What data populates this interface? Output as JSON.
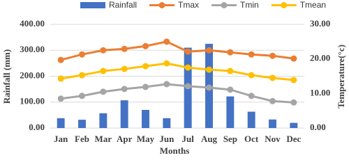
{
  "chart_data": {
    "type": "bar-line",
    "x_label": "Months",
    "y_label": "Rainfall (mm)",
    "y2_label": "Temperature(°c)",
    "categories": [
      "Jan",
      "Feb",
      "Mar",
      "Apr",
      "May",
      "Jun",
      "Jul",
      "Aug",
      "Sep",
      "Oct",
      "Nov",
      "Dec"
    ],
    "series": [
      {
        "name": "Rainfall",
        "type": "bar",
        "color": "#4472c4",
        "values": [
          38,
          32,
          57,
          107,
          70,
          38,
          310,
          325,
          122,
          63,
          33,
          20
        ]
      },
      {
        "name": "Tmax",
        "type": "line",
        "axis": "y2",
        "color": "#ed7d31",
        "values": [
          19.7,
          21.3,
          22.5,
          22.9,
          23.7,
          25.0,
          22.1,
          22.5,
          21.9,
          21.3,
          20.9,
          20.1
        ]
      },
      {
        "name": "Tmin",
        "type": "line",
        "axis": "y2",
        "color": "#a5a5a5",
        "values": [
          8.5,
          9.3,
          10.5,
          11.3,
          11.9,
          12.7,
          12.1,
          11.7,
          11.1,
          9.3,
          7.8,
          7.4
        ]
      },
      {
        "name": "Tmean",
        "type": "line",
        "axis": "y2",
        "color": "#ffc000",
        "values": [
          14.3,
          15.3,
          16.5,
          17.1,
          17.9,
          18.7,
          17.5,
          16.9,
          16.5,
          15.3,
          14.5,
          13.9
        ]
      }
    ],
    "ylim": [
      0,
      400
    ],
    "yticks": [
      {
        "value": 0,
        "label": "0.00"
      },
      {
        "value": 100,
        "label": "100.00"
      },
      {
        "value": 200,
        "label": "200.00"
      },
      {
        "value": 300,
        "label": "300.00"
      },
      {
        "value": 400,
        "label": "400.00"
      }
    ],
    "y2lim": [
      0,
      30
    ],
    "y2ticks": [
      {
        "value": 0,
        "label": "0.00"
      },
      {
        "value": 10,
        "label": "10.00"
      },
      {
        "value": 20,
        "label": "20.00"
      },
      {
        "value": 30,
        "label": "30.00"
      }
    ],
    "grid": true,
    "legend": "top"
  }
}
